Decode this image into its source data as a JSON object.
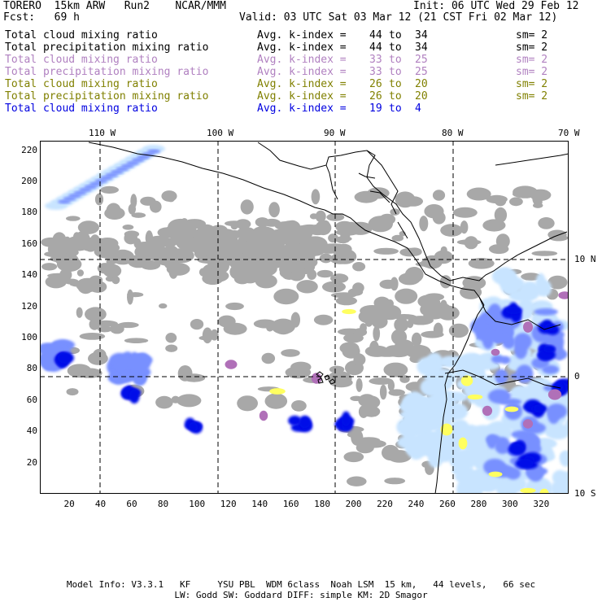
{
  "header": {
    "model": "TORERO  15km ARW   Run2    NCAR/MMM",
    "init": "Init: 06 UTC Wed 29 Feb 12",
    "fcst": "Fcst:   69 h",
    "valid": "Valid: 03 UTC Sat 03 Mar 12 (21 CST Fri 02 Mar 12)"
  },
  "legend": [
    {
      "field": "Total cloud mixing ratio",
      "kindex": "Avg. k-index =",
      "from": "44",
      "to_word": "to",
      "to": "34",
      "sm": "sm= 2",
      "color": "#000000"
    },
    {
      "field": "Total precipitation mixing ratio",
      "kindex": "Avg. k-index =",
      "from": "44",
      "to_word": "to",
      "to": "34",
      "sm": "sm= 2",
      "color": "#000000"
    },
    {
      "field": "Total cloud mixing ratio",
      "kindex": "Avg. k-index =",
      "from": "33",
      "to_word": "to",
      "to": "25",
      "sm": "sm= 2",
      "color": "#b080c0"
    },
    {
      "field": "Total precipitation mixing ratio",
      "kindex": "Avg. k-index =",
      "from": "33",
      "to_word": "to",
      "to": "25",
      "sm": "sm= 2",
      "color": "#b080c0"
    },
    {
      "field": "Total cloud mixing ratio",
      "kindex": "Avg. k-index =",
      "from": "26",
      "to_word": "to",
      "to": "20",
      "sm": "sm= 2",
      "color": "#808000"
    },
    {
      "field": "Total precipitation mixing ratio",
      "kindex": "Avg. k-index =",
      "from": "26",
      "to_word": "to",
      "to": "20",
      "sm": "sm= 2",
      "color": "#808000"
    },
    {
      "field": "Total cloud mixing ratio",
      "kindex": "Avg. k-index =",
      "from": "19",
      "to_word": "to",
      "to": "4",
      "sm": "",
      "color": "#0000e0"
    }
  ],
  "axes": {
    "top_labels": [
      "110 W",
      "100 W",
      "90 W",
      "80 W",
      "70 W"
    ],
    "right_labels": [
      "10 N",
      "0",
      "10 S"
    ],
    "x_ticks": [
      "20",
      "40",
      "60",
      "80",
      "100",
      "120",
      "140",
      "160",
      "180",
      "200",
      "220",
      "240",
      "260",
      "280",
      "300",
      "320"
    ],
    "y_ticks": [
      "220",
      "200",
      "180",
      "160",
      "140",
      "120",
      "100",
      "80",
      "60",
      "40",
      "20"
    ]
  },
  "colors": {
    "gray_cloud": "#a8a8a8",
    "light_blue": "#c8e4ff",
    "mid_blue": "#7890ff",
    "deep_blue": "#0010e8",
    "purple": "#b070b8",
    "yellow": "#ffff60"
  },
  "footer": {
    "line1": "Model Info: V3.3.1   KF     YSU PBL  WDM 6class  Noah LSM  15 km,   44 levels,   66 sec",
    "line2": "LW: Godd SW: Goddard DIFF: simple KM: 2D Smagor"
  }
}
